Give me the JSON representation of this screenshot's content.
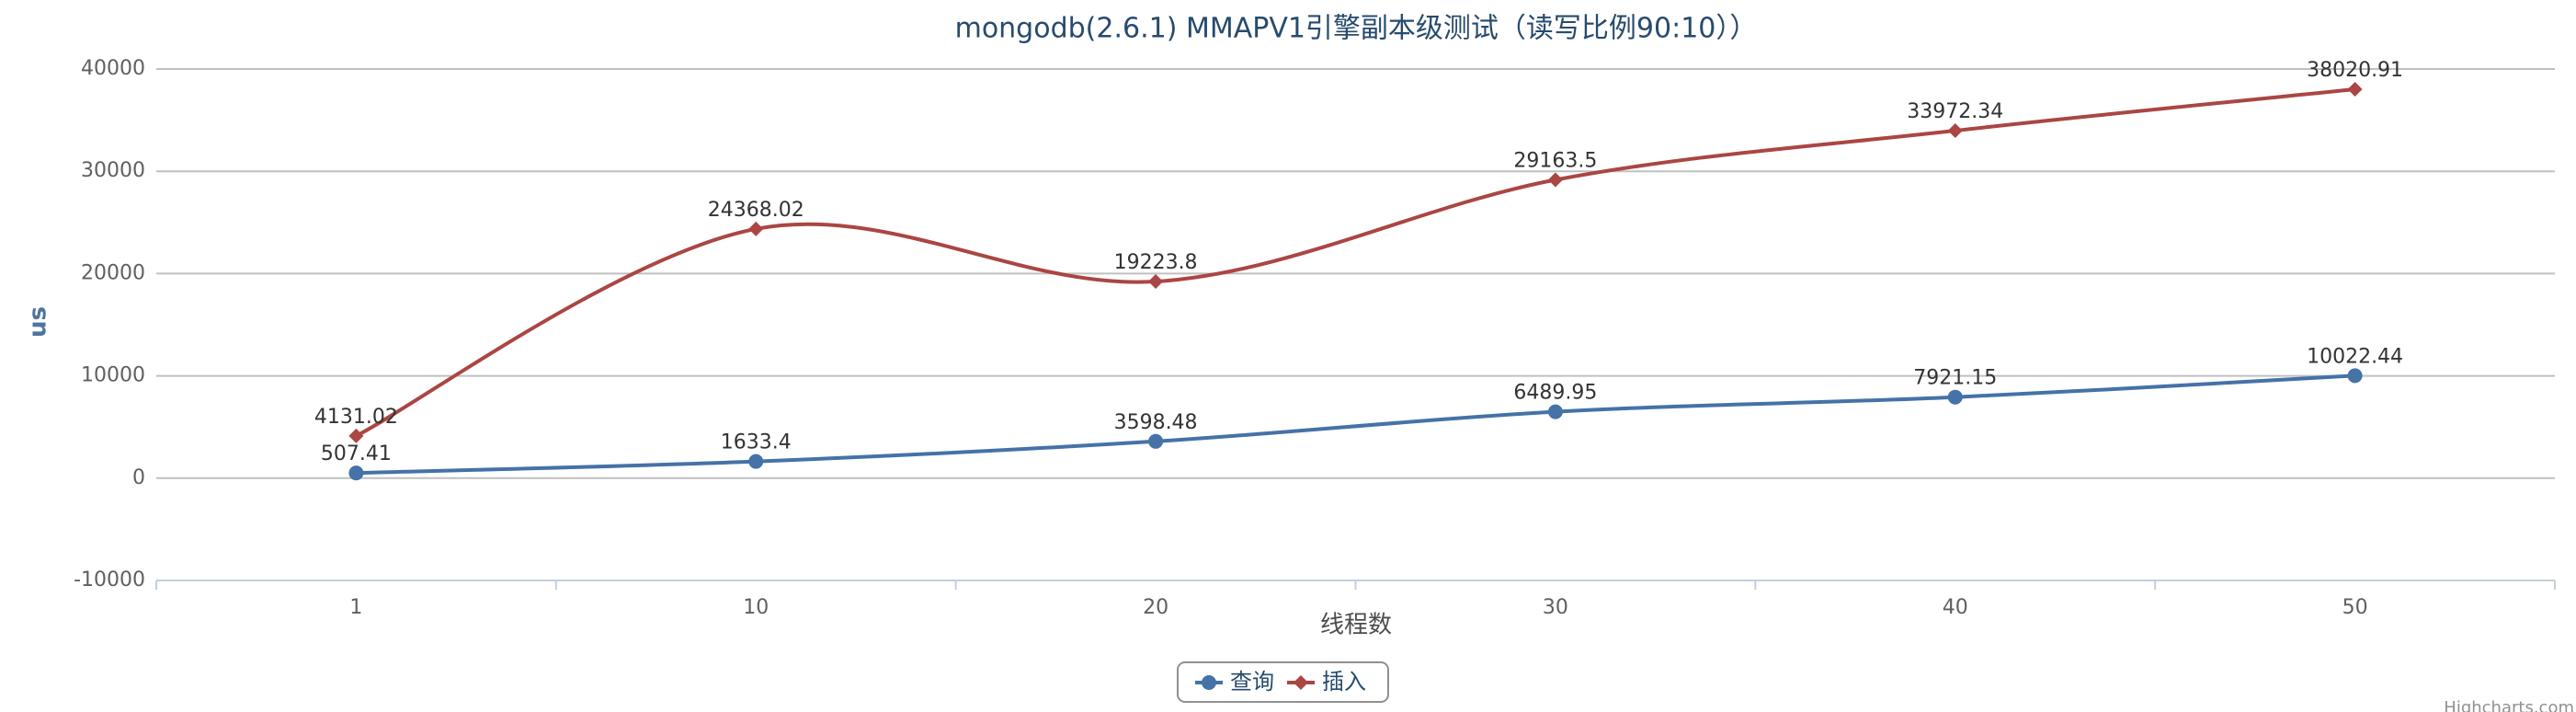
{
  "chart_data": {
    "type": "line",
    "title": "mongodb(2.6.1) MMAPV1引擎副本级测试（读写比例90:10））",
    "x_label": "线程数",
    "y_label": "us",
    "categories": [
      "1",
      "10",
      "20",
      "30",
      "40",
      "50"
    ],
    "series": [
      {
        "name": "查询",
        "color": "#4572A7",
        "marker": "circle",
        "values": [
          507.41,
          1633.4,
          3598.48,
          6489.95,
          7921.15,
          10022.44
        ]
      },
      {
        "name": "插入",
        "color": "#AA4643",
        "marker": "diamond",
        "values": [
          4131.02,
          24368.02,
          19223.8,
          29163.5,
          33972.34,
          38020.91
        ]
      }
    ],
    "ylim": [
      -10000,
      40000
    ],
    "yticks": [
      -10000,
      0,
      10000,
      20000,
      30000,
      40000
    ],
    "grid": true,
    "smooth": true,
    "legend": "bottom",
    "credits": "Highcharts.com"
  }
}
